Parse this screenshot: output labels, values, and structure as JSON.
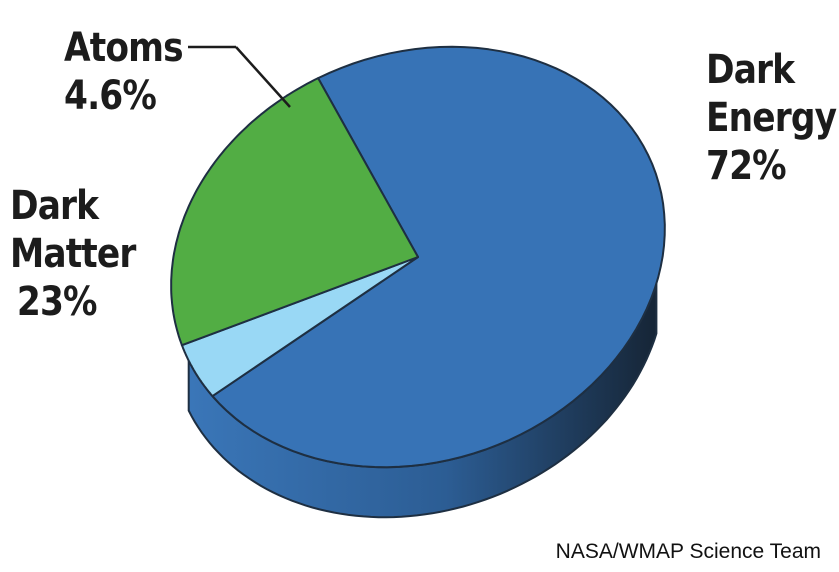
{
  "chart_data": {
    "type": "pie",
    "slices": [
      {
        "label": "Dark Energy",
        "display": "72%",
        "value": 72,
        "color": "#3773b6"
      },
      {
        "label": "Atoms",
        "display": "4.6%",
        "value": 4.6,
        "color": "#99d8f5"
      },
      {
        "label": "Dark Matter",
        "display": "23%",
        "value": 23,
        "color": "#52ad44"
      }
    ],
    "style": "3d-tilted",
    "credit": "NASA/WMAP Science Team"
  },
  "colors": {
    "outline": "#1e2f42",
    "side_light": "#3873b3",
    "side_dark": "#1a2a3c",
    "dark_matter_side": "#3f8a35"
  }
}
